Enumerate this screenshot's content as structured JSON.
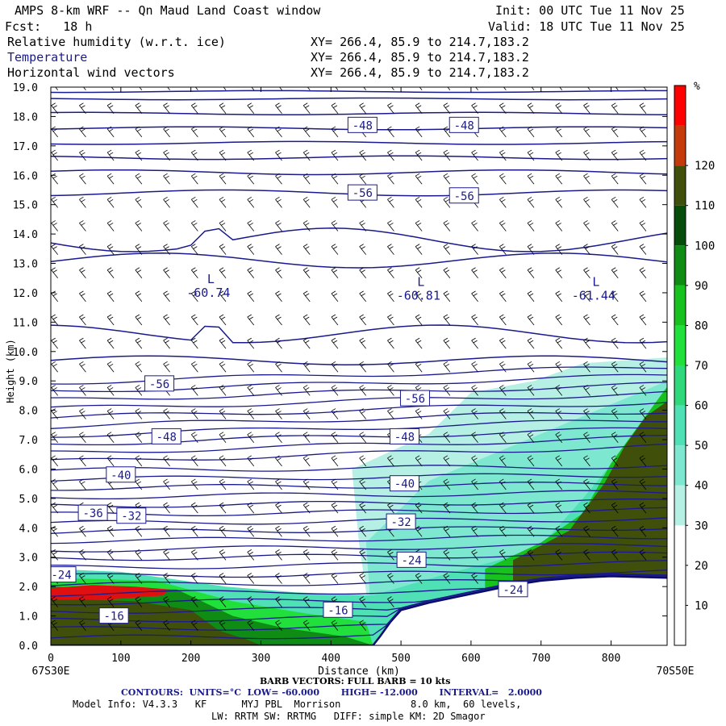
{
  "header": {
    "title": "AMPS 8-km WRF -- Qn Maud Land Coast window",
    "init": "Init: 00 UTC Tue 11 Nov 25",
    "fcst": "Fcst:   18 h",
    "valid": "Valid: 18 UTC Tue 11 Nov 25",
    "fields": [
      {
        "name": "Relative humidity (w.r.t. ice)",
        "xy": "XY= 266.4, 85.9 to 214.7,183.2"
      },
      {
        "name": "Temperature",
        "xy": "XY= 266.4, 85.9 to 214.7,183.2"
      },
      {
        "name": "Horizontal wind vectors",
        "xy": "XY= 266.4, 85.9 to 214.7,183.2"
      }
    ]
  },
  "footer": {
    "barb": "BARB VECTORS: FULL BARB = 10 kts",
    "contours": "CONTOURS:  UNITS=°C  LOW= -60.000       HIGH= -12.000       INTERVAL=   2.0000",
    "model1": "Model Info: V4.3.3   KF      MYJ PBL  Morrison            8.0 km,  60 levels,",
    "model2": "LW: RRTM SW: RRTMG   DIFF: simple KM: 2D Smagor"
  },
  "chart_data": {
    "type": "cross-section",
    "ylabel": "Height (km)",
    "xlabel": "Distance (km)",
    "x_start_label": "67S30E",
    "x_end_label": "70S50E",
    "xlim": [
      0,
      880
    ],
    "ylim": [
      0,
      19
    ],
    "xticks": [
      0,
      100,
      200,
      300,
      400,
      500,
      600,
      700,
      800
    ],
    "yticks": [
      "0.0",
      "1.0",
      "2.0",
      "3.0",
      "4.0",
      "5.0",
      "6.0",
      "7.0",
      "8.0",
      "9.0",
      "10.0",
      "11.0",
      "12.0",
      "13.0",
      "14.0",
      "15.0",
      "16.0",
      "17.0",
      "18.0",
      "19.0"
    ],
    "colorbar": {
      "unit": "%",
      "labels": [
        "10",
        "20",
        "30",
        "40",
        "50",
        "60",
        "70",
        "80",
        "90",
        "100",
        "110",
        "120"
      ],
      "colors": [
        "#ffffff",
        "#ffffff",
        "#ffffff",
        "#b6f0e4",
        "#7de8cf",
        "#4fe0b6",
        "#2fd87a",
        "#21e03c",
        "#18c21e",
        "#0f8c14",
        "#064d0a",
        "#40500a",
        "#c43a0a",
        "#ff0000"
      ]
    },
    "terrain": [
      [
        0,
        0
      ],
      [
        460,
        0
      ],
      [
        470,
        0.3
      ],
      [
        485,
        0.8
      ],
      [
        500,
        1.2
      ],
      [
        540,
        1.45
      ],
      [
        580,
        1.65
      ],
      [
        620,
        1.85
      ],
      [
        660,
        2.05
      ],
      [
        700,
        2.2
      ],
      [
        750,
        2.3
      ],
      [
        800,
        2.35
      ],
      [
        880,
        2.3
      ]
    ],
    "isotherm_labels": [
      {
        "x": 445,
        "y": 17.7,
        "t": "-48"
      },
      {
        "x": 590,
        "y": 17.7,
        "t": "-48"
      },
      {
        "x": 445,
        "y": 15.4,
        "t": "-56"
      },
      {
        "x": 590,
        "y": 15.3,
        "t": "-56"
      },
      {
        "x": 155,
        "y": 8.9,
        "t": "-56"
      },
      {
        "x": 520,
        "y": 8.4,
        "t": "-56"
      },
      {
        "x": 165,
        "y": 7.1,
        "t": "-48"
      },
      {
        "x": 505,
        "y": 7.1,
        "t": "-48"
      },
      {
        "x": 100,
        "y": 5.8,
        "t": "-40"
      },
      {
        "x": 505,
        "y": 5.5,
        "t": "-40"
      },
      {
        "x": 60,
        "y": 4.5,
        "t": "-36"
      },
      {
        "x": 115,
        "y": 4.4,
        "t": "-32"
      },
      {
        "x": 500,
        "y": 4.2,
        "t": "-32"
      },
      {
        "x": 515,
        "y": 2.9,
        "t": "-24"
      },
      {
        "x": 15,
        "y": 2.4,
        "t": "-24"
      },
      {
        "x": 660,
        "y": 1.9,
        "t": "-24"
      },
      {
        "x": 90,
        "y": 1.0,
        "t": "-16"
      },
      {
        "x": 410,
        "y": 1.2,
        "t": "-16"
      }
    ],
    "lows": [
      {
        "x": 225,
        "y": 12.0,
        "t": "-60.74"
      },
      {
        "x": 525,
        "y": 11.9,
        "t": "-60.81"
      },
      {
        "x": 775,
        "y": 11.9,
        "t": "-61.44"
      }
    ]
  }
}
